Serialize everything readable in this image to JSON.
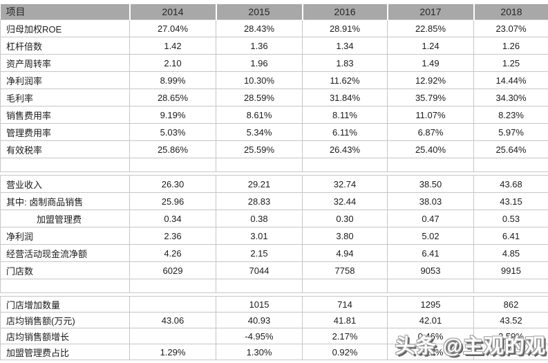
{
  "header": {
    "item_label": "项目",
    "years": [
      "2014",
      "2015",
      "2016",
      "2017",
      "2018"
    ]
  },
  "chart_data": {
    "type": "table",
    "title": "",
    "columns": [
      "项目",
      "2014",
      "2015",
      "2016",
      "2017",
      "2018"
    ],
    "sections": [
      [
        {
          "label": "归母加权ROE",
          "values": [
            "27.04%",
            "28.43%",
            "28.91%",
            "22.85%",
            "23.07%"
          ]
        },
        {
          "label": "杠杆倍数",
          "values": [
            "1.42",
            "1.36",
            "1.34",
            "1.24",
            "1.26"
          ]
        },
        {
          "label": "资产周转率",
          "values": [
            "2.10",
            "1.96",
            "1.83",
            "1.49",
            "1.25"
          ]
        },
        {
          "label": "净利润率",
          "values": [
            "8.99%",
            "10.30%",
            "11.62%",
            "12.92%",
            "14.44%"
          ]
        },
        {
          "label": "毛利率",
          "values": [
            "28.65%",
            "28.59%",
            "31.84%",
            "35.79%",
            "34.30%"
          ]
        },
        {
          "label": "销售费用率",
          "values": [
            "9.19%",
            "8.61%",
            "8.11%",
            "11.07%",
            "8.23%"
          ]
        },
        {
          "label": "管理费用率",
          "values": [
            "5.03%",
            "5.34%",
            "6.11%",
            "6.87%",
            "5.97%"
          ]
        },
        {
          "label": "有效税率",
          "values": [
            "25.86%",
            "25.59%",
            "26.43%",
            "25.40%",
            "25.64%"
          ]
        },
        {
          "label": "",
          "values": [
            "",
            "",
            "",
            "",
            ""
          ],
          "empty": true
        }
      ],
      [
        {
          "label": "营业收入",
          "values": [
            "26.30",
            "29.21",
            "32.74",
            "38.50",
            "43.68"
          ]
        },
        {
          "label": "其中: 卤制商品销售",
          "values": [
            "25.96",
            "28.83",
            "32.44",
            "38.03",
            "43.15"
          ]
        },
        {
          "label": "加盟管理费",
          "indent": true,
          "values": [
            "0.34",
            "0.38",
            "0.30",
            "0.47",
            "0.53"
          ]
        },
        {
          "label": "净利润",
          "values": [
            "2.36",
            "3.01",
            "3.80",
            "5.02",
            "6.41"
          ]
        },
        {
          "label": "经营活动现金流净额",
          "values": [
            "4.26",
            "2.15",
            "4.94",
            "6.41",
            "4.85"
          ]
        },
        {
          "label": "门店数",
          "values": [
            "6029",
            "7044",
            "7758",
            "9053",
            "9915"
          ]
        },
        {
          "label": "",
          "values": [
            "",
            "",
            "",
            "",
            ""
          ],
          "empty": true
        }
      ],
      [
        {
          "label": "门店增加数量",
          "values": [
            "",
            "1015",
            "714",
            "1295",
            "862"
          ]
        },
        {
          "label": "店均销售额(万元)",
          "values": [
            "43.06",
            "40.93",
            "41.81",
            "42.01",
            "43.52"
          ]
        },
        {
          "label": "店均销售额增长",
          "values": [
            "",
            "-4.95%",
            "2.17%",
            "0.46%",
            "3.59%"
          ]
        },
        {
          "label": "加盟管理费占比",
          "values": [
            "1.29%",
            "1.30%",
            "0.92%",
            "1.22%",
            ""
          ]
        }
      ]
    ]
  },
  "watermark": {
    "text": "头条 @主观的观"
  },
  "colors": {
    "header_bg": "#a8a8a8",
    "border": "#c6c6c6",
    "text": "#1b1b1b",
    "watermark_fill": "#ffffff",
    "watermark_shadow": "#626262"
  }
}
